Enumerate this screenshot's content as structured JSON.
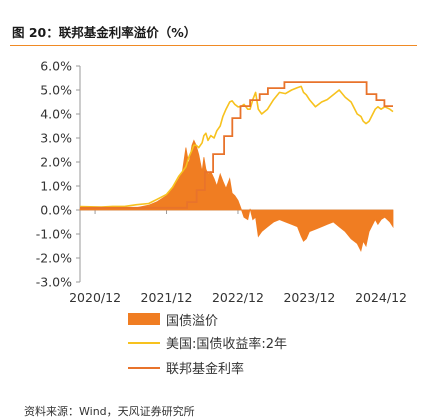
{
  "header": {
    "title": "图 20：联邦基金利率溢价（%）"
  },
  "footer": {
    "source": "资料来源：Wind，天风证券研究所"
  },
  "colors": {
    "premium": "#f07d22",
    "treasury": "#f7c21e",
    "fed": "#e8732b",
    "accent": "#f08a24",
    "axis": "#9a9a9a"
  },
  "chart_data": {
    "type": "line",
    "title": "",
    "xlabel": "",
    "ylabel": "",
    "x_range": [
      "2020-09-15",
      "2025-01-31"
    ],
    "ylim": [
      -3.0,
      6.0
    ],
    "y_ticks": [
      "6.0%",
      "5.0%",
      "4.0%",
      "3.0%",
      "2.0%",
      "1.0%",
      "0.0%",
      "-1.0%",
      "-2.0%",
      "-3.0%"
    ],
    "y_tick_values": [
      6,
      5,
      4,
      3,
      2,
      1,
      0,
      -1,
      -2,
      -3
    ],
    "x_ticks": [
      {
        "label": "2020/12",
        "date": "2020-12-01"
      },
      {
        "label": "2021/12",
        "date": "2021-12-01"
      },
      {
        "label": "2022/12",
        "date": "2022-12-01"
      },
      {
        "label": "2023/12",
        "date": "2023-12-01"
      },
      {
        "label": "2024/12",
        "date": "2024-12-01"
      }
    ],
    "legend_position": "bottom",
    "series": [
      {
        "name": "国债溢价",
        "kind": "area",
        "points": [
          [
            "2020-09-15",
            0.05
          ],
          [
            "2021-01-01",
            0.05
          ],
          [
            "2021-03-01",
            0.12
          ],
          [
            "2021-05-01",
            0.08
          ],
          [
            "2021-07-01",
            0.1
          ],
          [
            "2021-09-01",
            0.2
          ],
          [
            "2021-10-15",
            0.35
          ],
          [
            "2021-12-01",
            0.6
          ],
          [
            "2022-01-01",
            0.9
          ],
          [
            "2022-02-01",
            1.3
          ],
          [
            "2022-02-20",
            1.6
          ],
          [
            "2022-03-10",
            2.6
          ],
          [
            "2022-03-25",
            1.9
          ],
          [
            "2022-04-10",
            2.7
          ],
          [
            "2022-04-20",
            2.9
          ],
          [
            "2022-05-01",
            2.7
          ],
          [
            "2022-05-15",
            2.3
          ],
          [
            "2022-06-01",
            1.6
          ],
          [
            "2022-06-10",
            2.2
          ],
          [
            "2022-06-20",
            1.7
          ],
          [
            "2022-07-01",
            1.5
          ],
          [
            "2022-07-15",
            1.6
          ],
          [
            "2022-08-01",
            1.3
          ],
          [
            "2022-08-15",
            1.0
          ],
          [
            "2022-09-01",
            1.5
          ],
          [
            "2022-09-15",
            1.2
          ],
          [
            "2022-10-01",
            0.9
          ],
          [
            "2022-10-20",
            1.3
          ],
          [
            "2022-11-01",
            0.7
          ],
          [
            "2022-11-15",
            0.6
          ],
          [
            "2022-12-01",
            0.4
          ],
          [
            "2022-12-15",
            0.1
          ],
          [
            "2023-01-01",
            -0.3
          ],
          [
            "2023-01-20",
            -0.4
          ],
          [
            "2023-02-01",
            0.05
          ],
          [
            "2023-02-15",
            -0.4
          ],
          [
            "2023-03-01",
            -0.3
          ],
          [
            "2023-03-15",
            -1.1
          ],
          [
            "2023-04-01",
            -0.9
          ],
          [
            "2023-05-01",
            -0.7
          ],
          [
            "2023-06-01",
            -0.5
          ],
          [
            "2023-07-01",
            -0.4
          ],
          [
            "2023-08-01",
            -0.5
          ],
          [
            "2023-09-01",
            -0.6
          ],
          [
            "2023-10-01",
            -0.7
          ],
          [
            "2023-10-20",
            -1.1
          ],
          [
            "2023-11-01",
            -1.3
          ],
          [
            "2023-11-15",
            -1.2
          ],
          [
            "2023-12-01",
            -0.9
          ],
          [
            "2024-01-01",
            -0.8
          ],
          [
            "2024-02-01",
            -0.7
          ],
          [
            "2024-03-01",
            -0.6
          ],
          [
            "2024-04-01",
            -0.5
          ],
          [
            "2024-05-01",
            -0.7
          ],
          [
            "2024-06-01",
            -0.9
          ],
          [
            "2024-07-01",
            -1.2
          ],
          [
            "2024-08-01",
            -1.4
          ],
          [
            "2024-08-20",
            -1.7
          ],
          [
            "2024-09-01",
            -1.3
          ],
          [
            "2024-09-15",
            -1.5
          ],
          [
            "2024-10-01",
            -0.9
          ],
          [
            "2024-11-01",
            -0.4
          ],
          [
            "2024-11-15",
            -0.6
          ],
          [
            "2024-12-01",
            -0.4
          ],
          [
            "2024-12-20",
            -0.3
          ],
          [
            "2025-01-15",
            -0.5
          ],
          [
            "2025-01-31",
            -0.7
          ]
        ]
      },
      {
        "name": "美国:国债收益率:2年",
        "kind": "line",
        "points": [
          [
            "2020-09-15",
            0.14
          ],
          [
            "2021-01-01",
            0.12
          ],
          [
            "2021-03-01",
            0.15
          ],
          [
            "2021-05-01",
            0.15
          ],
          [
            "2021-07-01",
            0.22
          ],
          [
            "2021-09-01",
            0.27
          ],
          [
            "2021-10-15",
            0.45
          ],
          [
            "2021-12-01",
            0.65
          ],
          [
            "2022-01-01",
            0.95
          ],
          [
            "2022-02-01",
            1.4
          ],
          [
            "2022-02-20",
            1.6
          ],
          [
            "2022-03-10",
            1.8
          ],
          [
            "2022-03-25",
            2.2
          ],
          [
            "2022-04-10",
            2.5
          ],
          [
            "2022-04-20",
            2.7
          ],
          [
            "2022-05-01",
            2.7
          ],
          [
            "2022-05-15",
            2.6
          ],
          [
            "2022-06-01",
            2.8
          ],
          [
            "2022-06-10",
            3.1
          ],
          [
            "2022-06-20",
            3.2
          ],
          [
            "2022-07-01",
            2.9
          ],
          [
            "2022-07-15",
            3.1
          ],
          [
            "2022-08-01",
            3.0
          ],
          [
            "2022-08-15",
            3.3
          ],
          [
            "2022-09-01",
            3.5
          ],
          [
            "2022-09-15",
            3.9
          ],
          [
            "2022-10-01",
            4.2
          ],
          [
            "2022-10-20",
            4.5
          ],
          [
            "2022-11-01",
            4.55
          ],
          [
            "2022-11-15",
            4.4
          ],
          [
            "2022-12-01",
            4.3
          ],
          [
            "2022-12-15",
            4.3
          ],
          [
            "2023-01-01",
            4.4
          ],
          [
            "2023-01-20",
            4.2
          ],
          [
            "2023-02-01",
            4.2
          ],
          [
            "2023-02-15",
            4.6
          ],
          [
            "2023-03-01",
            4.9
          ],
          [
            "2023-03-15",
            4.2
          ],
          [
            "2023-04-01",
            4.0
          ],
          [
            "2023-05-01",
            4.2
          ],
          [
            "2023-06-01",
            4.6
          ],
          [
            "2023-07-01",
            4.9
          ],
          [
            "2023-08-01",
            4.85
          ],
          [
            "2023-09-01",
            5.0
          ],
          [
            "2023-10-01",
            5.1
          ],
          [
            "2023-10-20",
            5.15
          ],
          [
            "2023-11-01",
            4.9
          ],
          [
            "2023-11-15",
            4.8
          ],
          [
            "2023-12-01",
            4.6
          ],
          [
            "2024-01-01",
            4.3
          ],
          [
            "2024-02-01",
            4.5
          ],
          [
            "2024-03-01",
            4.6
          ],
          [
            "2024-04-01",
            4.8
          ],
          [
            "2024-05-01",
            5.0
          ],
          [
            "2024-06-01",
            4.7
          ],
          [
            "2024-07-01",
            4.5
          ],
          [
            "2024-08-01",
            4.0
          ],
          [
            "2024-08-20",
            3.9
          ],
          [
            "2024-09-01",
            3.7
          ],
          [
            "2024-09-15",
            3.6
          ],
          [
            "2024-10-01",
            3.7
          ],
          [
            "2024-11-01",
            4.2
          ],
          [
            "2024-11-15",
            4.3
          ],
          [
            "2024-12-01",
            4.2
          ],
          [
            "2024-12-20",
            4.3
          ],
          [
            "2025-01-15",
            4.2
          ],
          [
            "2025-01-31",
            4.1
          ]
        ]
      },
      {
        "name": "联邦基金利率",
        "kind": "step",
        "points": [
          [
            "2020-09-15",
            0.09
          ],
          [
            "2022-03-16",
            0.33
          ],
          [
            "2022-05-04",
            0.83
          ],
          [
            "2022-06-15",
            1.58
          ],
          [
            "2022-07-27",
            2.33
          ],
          [
            "2022-09-21",
            3.08
          ],
          [
            "2022-11-02",
            3.83
          ],
          [
            "2022-12-14",
            4.33
          ],
          [
            "2023-02-01",
            4.58
          ],
          [
            "2023-03-22",
            4.83
          ],
          [
            "2023-05-03",
            5.08
          ],
          [
            "2023-07-26",
            5.33
          ],
          [
            "2024-09-18",
            4.83
          ],
          [
            "2024-11-07",
            4.58
          ],
          [
            "2024-12-18",
            4.33
          ],
          [
            "2025-01-31",
            4.33
          ]
        ]
      }
    ]
  }
}
